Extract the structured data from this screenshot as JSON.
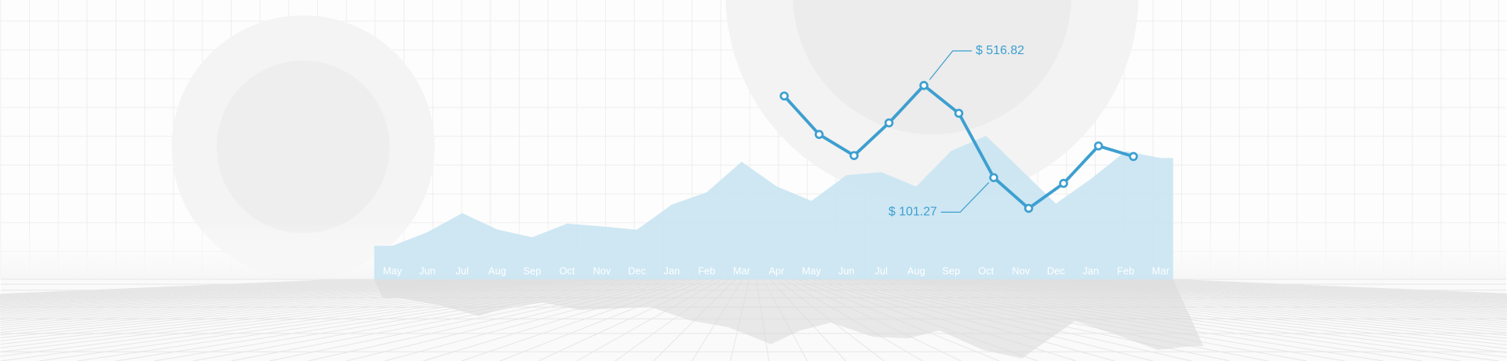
{
  "chart_data": {
    "type": "line",
    "categories": [
      "May",
      "Jun",
      "Jul",
      "Aug",
      "Sep",
      "Oct",
      "Nov",
      "Dec",
      "Jan",
      "Feb",
      "Mar",
      "Apr",
      "May",
      "Jun",
      "Jul",
      "Aug",
      "Sep",
      "Oct",
      "Nov",
      "Dec",
      "Jan",
      "Feb",
      "Mar"
    ],
    "series": [
      {
        "type": "area",
        "color": "#c9e4f2",
        "values": [
          -206.1,
          -144.6,
          -58.9,
          -132.5,
          -167.9,
          -106.5,
          -118.6,
          -133.8,
          -20.4,
          35.0,
          172.7,
          62.3,
          -3.9,
          112.1,
          125.9,
          61.0,
          221.2,
          289.6,
          136.8,
          -16.0,
          94.8,
          220.7,
          189.6
        ]
      },
      {
        "type": "line",
        "color": "#3d9fd0",
        "values": [
          null,
          null,
          null,
          null,
          null,
          null,
          null,
          null,
          null,
          null,
          null,
          469.2,
          296.1,
          200.8,
          348.0,
          516.82,
          391.3,
          101.27,
          -37.3,
          75.3,
          244.1,
          196.5,
          null
        ]
      }
    ],
    "annotations": [
      "$ 516.82",
      "$ 101.27"
    ],
    "ylim": [
      -357.6,
      902.1
    ]
  }
}
